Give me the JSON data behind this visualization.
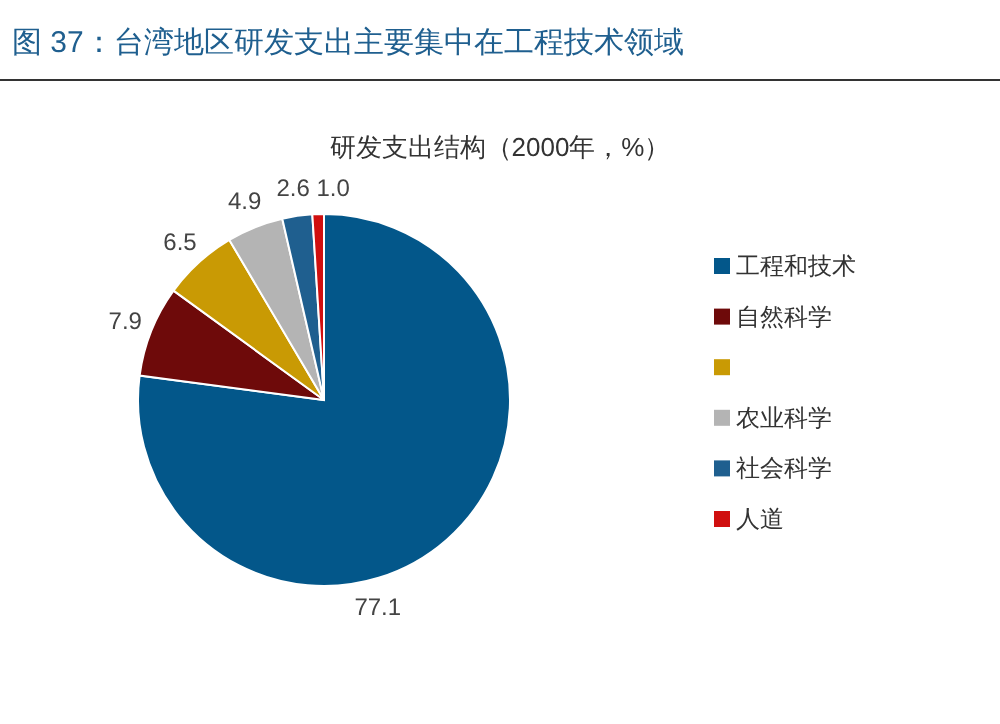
{
  "chart_data": {
    "type": "pie",
    "title": "图 37：台湾地区研发支出主要集中在工程技术领域",
    "subtitle": "研发支出结构（2000年，%）",
    "categories": [
      "工程和技术",
      "自然科学",
      null,
      "农业科学",
      "社会科学",
      "人道"
    ],
    "values": [
      77.1,
      7.9,
      6.5,
      4.9,
      2.6,
      1.0
    ],
    "colors": [
      "#03578a",
      "#6e0a0a",
      "#c99a04",
      "#b4b4b4",
      "#1f5f8f",
      "#d00f0f"
    ],
    "value_labels": [
      "77.1",
      "7.9",
      "6.5",
      "4.9",
      "2.6",
      "1.0"
    ],
    "legend": "right"
  }
}
